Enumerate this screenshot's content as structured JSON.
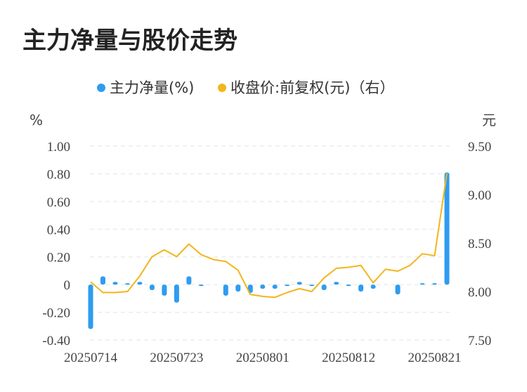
{
  "title": "主力净量与股价走势",
  "colors": {
    "bar": "#2e9cf0",
    "line": "#f2b51c",
    "grid": "#e3e3e3"
  },
  "chart_data": {
    "type": "bar",
    "title": "主力净量与股价走势",
    "legend": [
      "主力净量(%)",
      "收盘价:前复权(元)（右）"
    ],
    "legend_position": "top-center",
    "y_left_unit": "%",
    "y_right_unit": "元",
    "y_left_ticks": [
      "1.00",
      "0.80",
      "0.60",
      "0.40",
      "0.20",
      "0",
      "-0.20",
      "-0.40"
    ],
    "y_right_ticks": [
      "9.50",
      "9.00",
      "8.50",
      "8.00",
      "7.50"
    ],
    "ylim_left": [
      -0.4,
      1.0
    ],
    "ylim_right": [
      7.5,
      9.5
    ],
    "x_tick_labels": [
      "20250714",
      "20250723",
      "20250801",
      "20250812",
      "20250821"
    ],
    "grid": true,
    "series": [
      {
        "name": "主力净量(%)",
        "type": "bar",
        "axis": "left",
        "values": [
          -0.32,
          0.06,
          0.02,
          0.01,
          0.02,
          -0.04,
          -0.08,
          -0.13,
          0.06,
          -0.01,
          0.0,
          -0.08,
          -0.05,
          -0.06,
          -0.03,
          -0.03,
          -0.01,
          0.02,
          -0.01,
          -0.04,
          0.02,
          -0.01,
          -0.05,
          -0.03,
          0.0,
          -0.07,
          0.0,
          0.01,
          0.01,
          0.81
        ]
      },
      {
        "name": "收盘价:前复权(元)（右）",
        "type": "line",
        "axis": "right",
        "values": [
          8.1,
          7.99,
          7.99,
          8.0,
          8.16,
          8.36,
          8.43,
          8.36,
          8.49,
          8.38,
          8.33,
          8.31,
          8.22,
          7.97,
          7.95,
          7.94,
          7.99,
          8.03,
          8.0,
          8.14,
          8.24,
          8.25,
          8.27,
          8.09,
          8.23,
          8.21,
          8.27,
          8.39,
          8.37,
          9.22
        ]
      }
    ]
  }
}
